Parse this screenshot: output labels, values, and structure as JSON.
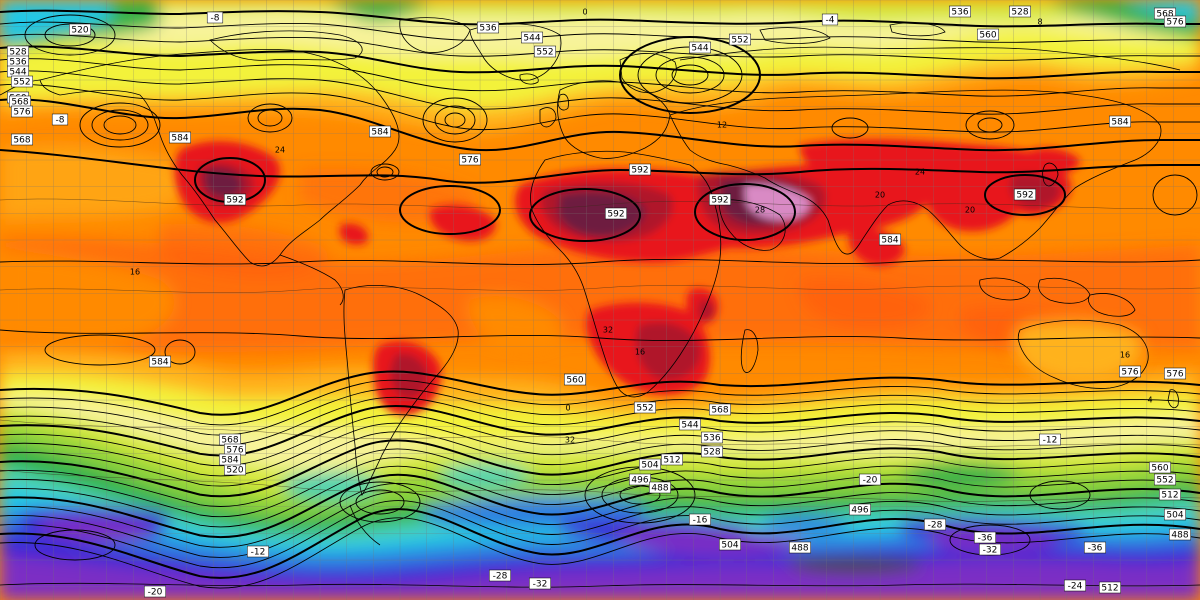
{
  "map": {
    "field_colors": {
      "violet": "#7b2ec4",
      "deep_blue": "#3a2bd6",
      "blue": "#2f7fe0",
      "cyan": "#22c7e6",
      "teal": "#4fd3b0",
      "green": "#35b24a",
      "light_green": "#8fd33a",
      "yellow_green": "#d6e83a",
      "yellow": "#f3f23a",
      "pale_yellow": "#f7f39a",
      "orange_light": "#ffb21e",
      "orange": "#ff8a00",
      "orange_red": "#ff5a14",
      "red": "#e8141c",
      "dark_red": "#b0122a",
      "maroon": "#6e1a3f",
      "pink": "#d98ac4"
    },
    "contour_labels": [
      {
        "text": "520"
      },
      {
        "text": "528"
      },
      {
        "text": "536"
      },
      {
        "text": "544"
      },
      {
        "text": "552"
      },
      {
        "text": "560"
      },
      {
        "text": "568"
      },
      {
        "text": "576"
      },
      {
        "text": "584"
      },
      {
        "text": "592"
      },
      {
        "text": "536"
      },
      {
        "text": "544"
      },
      {
        "text": "552"
      },
      {
        "text": "552"
      },
      {
        "text": "544"
      },
      {
        "text": "536"
      },
      {
        "text": "528"
      },
      {
        "text": "560"
      },
      {
        "text": "568"
      },
      {
        "text": "576"
      },
      {
        "text": "584"
      },
      {
        "text": "568"
      },
      {
        "text": "576"
      },
      {
        "text": "584"
      },
      {
        "text": "592"
      },
      {
        "text": "592"
      },
      {
        "text": "592"
      },
      {
        "text": "592"
      },
      {
        "text": "584"
      },
      {
        "text": "584"
      },
      {
        "text": "576"
      },
      {
        "text": "576"
      },
      {
        "text": "568"
      },
      {
        "text": "560"
      },
      {
        "text": "552"
      },
      {
        "text": "544"
      },
      {
        "text": "536"
      },
      {
        "text": "528"
      },
      {
        "text": "520"
      },
      {
        "text": "512"
      },
      {
        "text": "504"
      },
      {
        "text": "496"
      },
      {
        "text": "488"
      },
      {
        "text": "496"
      },
      {
        "text": "504"
      },
      {
        "text": "488"
      },
      {
        "text": "512"
      },
      {
        "text": "504"
      },
      {
        "text": "488"
      },
      {
        "text": "512"
      },
      {
        "text": "552"
      },
      {
        "text": "560"
      },
      {
        "text": "568"
      },
      {
        "text": "576"
      },
      {
        "text": "584"
      }
    ],
    "temp_labels": [
      {
        "text": "-8"
      },
      {
        "text": "0"
      },
      {
        "text": "8"
      },
      {
        "text": "16"
      },
      {
        "text": "24"
      },
      {
        "text": "32"
      },
      {
        "text": "16"
      },
      {
        "text": "20"
      },
      {
        "text": "12"
      },
      {
        "text": "28"
      },
      {
        "text": "24"
      },
      {
        "text": "20"
      },
      {
        "text": "16"
      },
      {
        "text": "4"
      },
      {
        "text": "0"
      },
      {
        "text": "-4"
      },
      {
        "text": "-12"
      },
      {
        "text": "-20"
      },
      {
        "text": "-28"
      },
      {
        "text": "-32"
      },
      {
        "text": "-36"
      },
      {
        "text": "-16"
      },
      {
        "text": "-24"
      },
      {
        "text": "-20"
      },
      {
        "text": "-32"
      },
      {
        "text": "-36"
      },
      {
        "text": "-28"
      },
      {
        "text": "-12"
      },
      {
        "text": "-8"
      },
      {
        "text": "32"
      }
    ]
  }
}
